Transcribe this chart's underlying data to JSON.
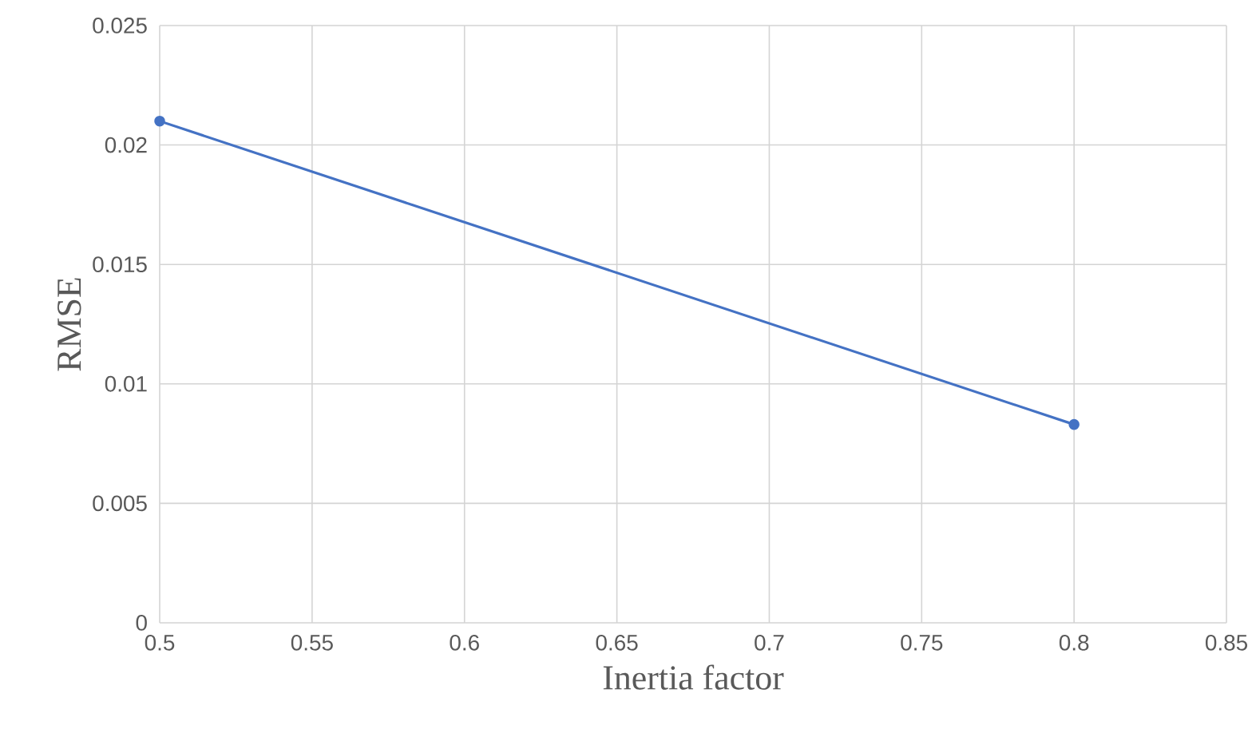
{
  "chart_data": {
    "type": "line",
    "xlabel": "Inertia factor",
    "ylabel": "RMSE",
    "x": [
      0.5,
      0.8
    ],
    "series": [
      {
        "color": "#4472c4",
        "values": [
          0.021,
          0.0083
        ]
      }
    ],
    "xlim": [
      0.5,
      0.85
    ],
    "xticks": [
      0.5,
      0.55,
      0.6,
      0.65,
      0.7,
      0.75,
      0.8,
      0.85
    ],
    "ylim": [
      0,
      0.025
    ],
    "yticks": [
      0,
      0.005,
      0.01,
      0.015,
      0.02,
      0.025
    ],
    "grid": true,
    "marker": "circle",
    "line_style": "solid"
  }
}
